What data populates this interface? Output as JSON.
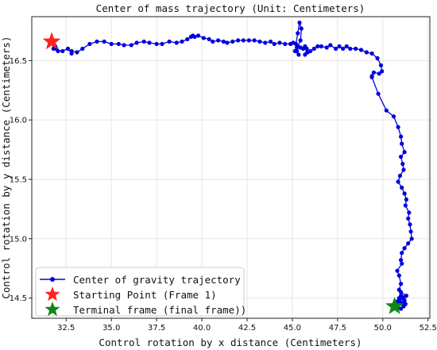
{
  "chart_data": {
    "type": "scatter",
    "title": "Center of mass trajectory (Unit: Centimeters)",
    "xlabel": "Control rotation by x distance (Centimeters)",
    "ylabel": "Control rotation by y distance (Centimeters)",
    "xlim": [
      30.6,
      52.6
    ],
    "ylim": [
      14.33,
      16.87
    ],
    "xticks": [
      "32.5",
      "35.0",
      "37.5",
      "40.0",
      "42.5",
      "45.0",
      "47.5",
      "50.0",
      "52.5"
    ],
    "yticks": [
      "14.5",
      "15.0",
      "15.5",
      "16.0",
      "16.5"
    ],
    "grid": true,
    "legend_position": "lower-left",
    "series": [
      {
        "name": "Center of gravity trajectory",
        "color": "#0000dd",
        "marker": "circle",
        "points": [
          [
            31.75,
            16.66
          ],
          [
            31.8,
            16.6
          ],
          [
            31.7,
            16.68
          ],
          [
            31.85,
            16.63
          ],
          [
            31.9,
            16.62
          ],
          [
            31.7,
            16.66
          ],
          [
            31.8,
            16.64
          ],
          [
            31.95,
            16.6
          ],
          [
            32.05,
            16.58
          ],
          [
            32.3,
            16.58
          ],
          [
            32.6,
            16.6
          ],
          [
            32.8,
            16.56
          ],
          [
            32.8,
            16.58
          ],
          [
            33.1,
            16.57
          ],
          [
            33.4,
            16.6
          ],
          [
            33.8,
            16.64
          ],
          [
            34.2,
            16.66
          ],
          [
            34.6,
            16.66
          ],
          [
            35.0,
            16.64
          ],
          [
            35.4,
            16.64
          ],
          [
            35.7,
            16.63
          ],
          [
            36.1,
            16.63
          ],
          [
            36.4,
            16.65
          ],
          [
            36.8,
            16.66
          ],
          [
            37.1,
            16.65
          ],
          [
            37.5,
            16.64
          ],
          [
            37.8,
            16.64
          ],
          [
            38.2,
            16.66
          ],
          [
            38.6,
            16.65
          ],
          [
            38.9,
            16.66
          ],
          [
            39.2,
            16.68
          ],
          [
            39.5,
            16.71
          ],
          [
            39.4,
            16.7
          ],
          [
            39.6,
            16.7
          ],
          [
            39.8,
            16.71
          ],
          [
            40.1,
            16.69
          ],
          [
            40.4,
            16.68
          ],
          [
            40.6,
            16.66
          ],
          [
            40.9,
            16.67
          ],
          [
            41.2,
            16.66
          ],
          [
            41.4,
            16.65
          ],
          [
            41.7,
            16.66
          ],
          [
            42.0,
            16.67
          ],
          [
            42.3,
            16.67
          ],
          [
            42.6,
            16.67
          ],
          [
            42.9,
            16.67
          ],
          [
            43.2,
            16.66
          ],
          [
            43.5,
            16.65
          ],
          [
            43.8,
            16.66
          ],
          [
            44.0,
            16.64
          ],
          [
            44.3,
            16.65
          ],
          [
            44.6,
            16.64
          ],
          [
            44.9,
            16.64
          ],
          [
            45.05,
            16.65
          ],
          [
            45.2,
            16.64
          ],
          [
            45.3,
            16.73
          ],
          [
            45.4,
            16.82
          ],
          [
            45.5,
            16.77
          ],
          [
            45.45,
            16.67
          ],
          [
            45.3,
            16.62
          ],
          [
            45.25,
            16.58
          ],
          [
            45.35,
            16.55
          ],
          [
            45.15,
            16.58
          ],
          [
            45.25,
            16.61
          ],
          [
            45.45,
            16.61
          ],
          [
            45.6,
            16.6
          ],
          [
            45.7,
            16.62
          ],
          [
            45.8,
            16.6
          ],
          [
            45.7,
            16.55
          ],
          [
            45.85,
            16.57
          ],
          [
            46.0,
            16.58
          ],
          [
            46.2,
            16.6
          ],
          [
            46.4,
            16.62
          ],
          [
            46.6,
            16.62
          ],
          [
            46.9,
            16.61
          ],
          [
            47.1,
            16.63
          ],
          [
            47.4,
            16.6
          ],
          [
            47.6,
            16.62
          ],
          [
            47.8,
            16.6
          ],
          [
            48.0,
            16.62
          ],
          [
            48.2,
            16.6
          ],
          [
            48.5,
            16.6
          ],
          [
            48.8,
            16.59
          ],
          [
            49.1,
            16.57
          ],
          [
            49.4,
            16.56
          ],
          [
            49.7,
            16.52
          ],
          [
            49.9,
            16.46
          ],
          [
            49.95,
            16.41
          ],
          [
            49.8,
            16.39
          ],
          [
            49.5,
            16.4
          ],
          [
            49.4,
            16.37
          ],
          [
            49.4,
            16.36
          ],
          [
            49.75,
            16.22
          ],
          [
            50.2,
            16.08
          ],
          [
            50.6,
            16.03
          ],
          [
            50.85,
            15.94
          ],
          [
            51.0,
            15.86
          ],
          [
            51.05,
            15.8
          ],
          [
            51.2,
            15.73
          ],
          [
            51.0,
            15.69
          ],
          [
            51.1,
            15.63
          ],
          [
            51.15,
            15.58
          ],
          [
            50.95,
            15.53
          ],
          [
            50.85,
            15.48
          ],
          [
            51.05,
            15.43
          ],
          [
            51.2,
            15.38
          ],
          [
            51.3,
            15.33
          ],
          [
            51.25,
            15.28
          ],
          [
            51.45,
            15.22
          ],
          [
            51.4,
            15.17
          ],
          [
            51.5,
            15.12
          ],
          [
            51.55,
            15.06
          ],
          [
            51.6,
            15.0
          ],
          [
            51.4,
            14.96
          ],
          [
            51.2,
            14.92
          ],
          [
            51.05,
            14.88
          ],
          [
            51.0,
            14.82
          ],
          [
            51.05,
            14.79
          ],
          [
            50.8,
            14.73
          ],
          [
            50.9,
            14.69
          ],
          [
            51.0,
            14.62
          ],
          [
            50.9,
            14.57
          ],
          [
            51.0,
            14.52
          ],
          [
            51.1,
            14.5
          ],
          [
            50.9,
            14.48
          ],
          [
            51.05,
            14.46
          ],
          [
            51.15,
            14.43
          ],
          [
            50.95,
            14.47
          ],
          [
            50.85,
            14.44
          ],
          [
            50.9,
            14.5
          ],
          [
            51.2,
            14.48
          ],
          [
            51.0,
            14.55
          ],
          [
            51.3,
            14.52
          ],
          [
            51.1,
            14.45
          ],
          [
            50.75,
            14.47
          ],
          [
            51.25,
            14.45
          ],
          [
            51.1,
            14.51
          ],
          [
            50.8,
            14.42
          ],
          [
            51.0,
            14.41
          ]
        ]
      }
    ],
    "markers": [
      {
        "name": "Starting Point (Frame 1)",
        "x": 31.7,
        "y": 16.66,
        "color": "#ff2222",
        "shape": "star"
      },
      {
        "name": "Terminal frame (final frame))",
        "x": 50.65,
        "y": 14.43,
        "color": "#118811",
        "shape": "star"
      }
    ]
  }
}
